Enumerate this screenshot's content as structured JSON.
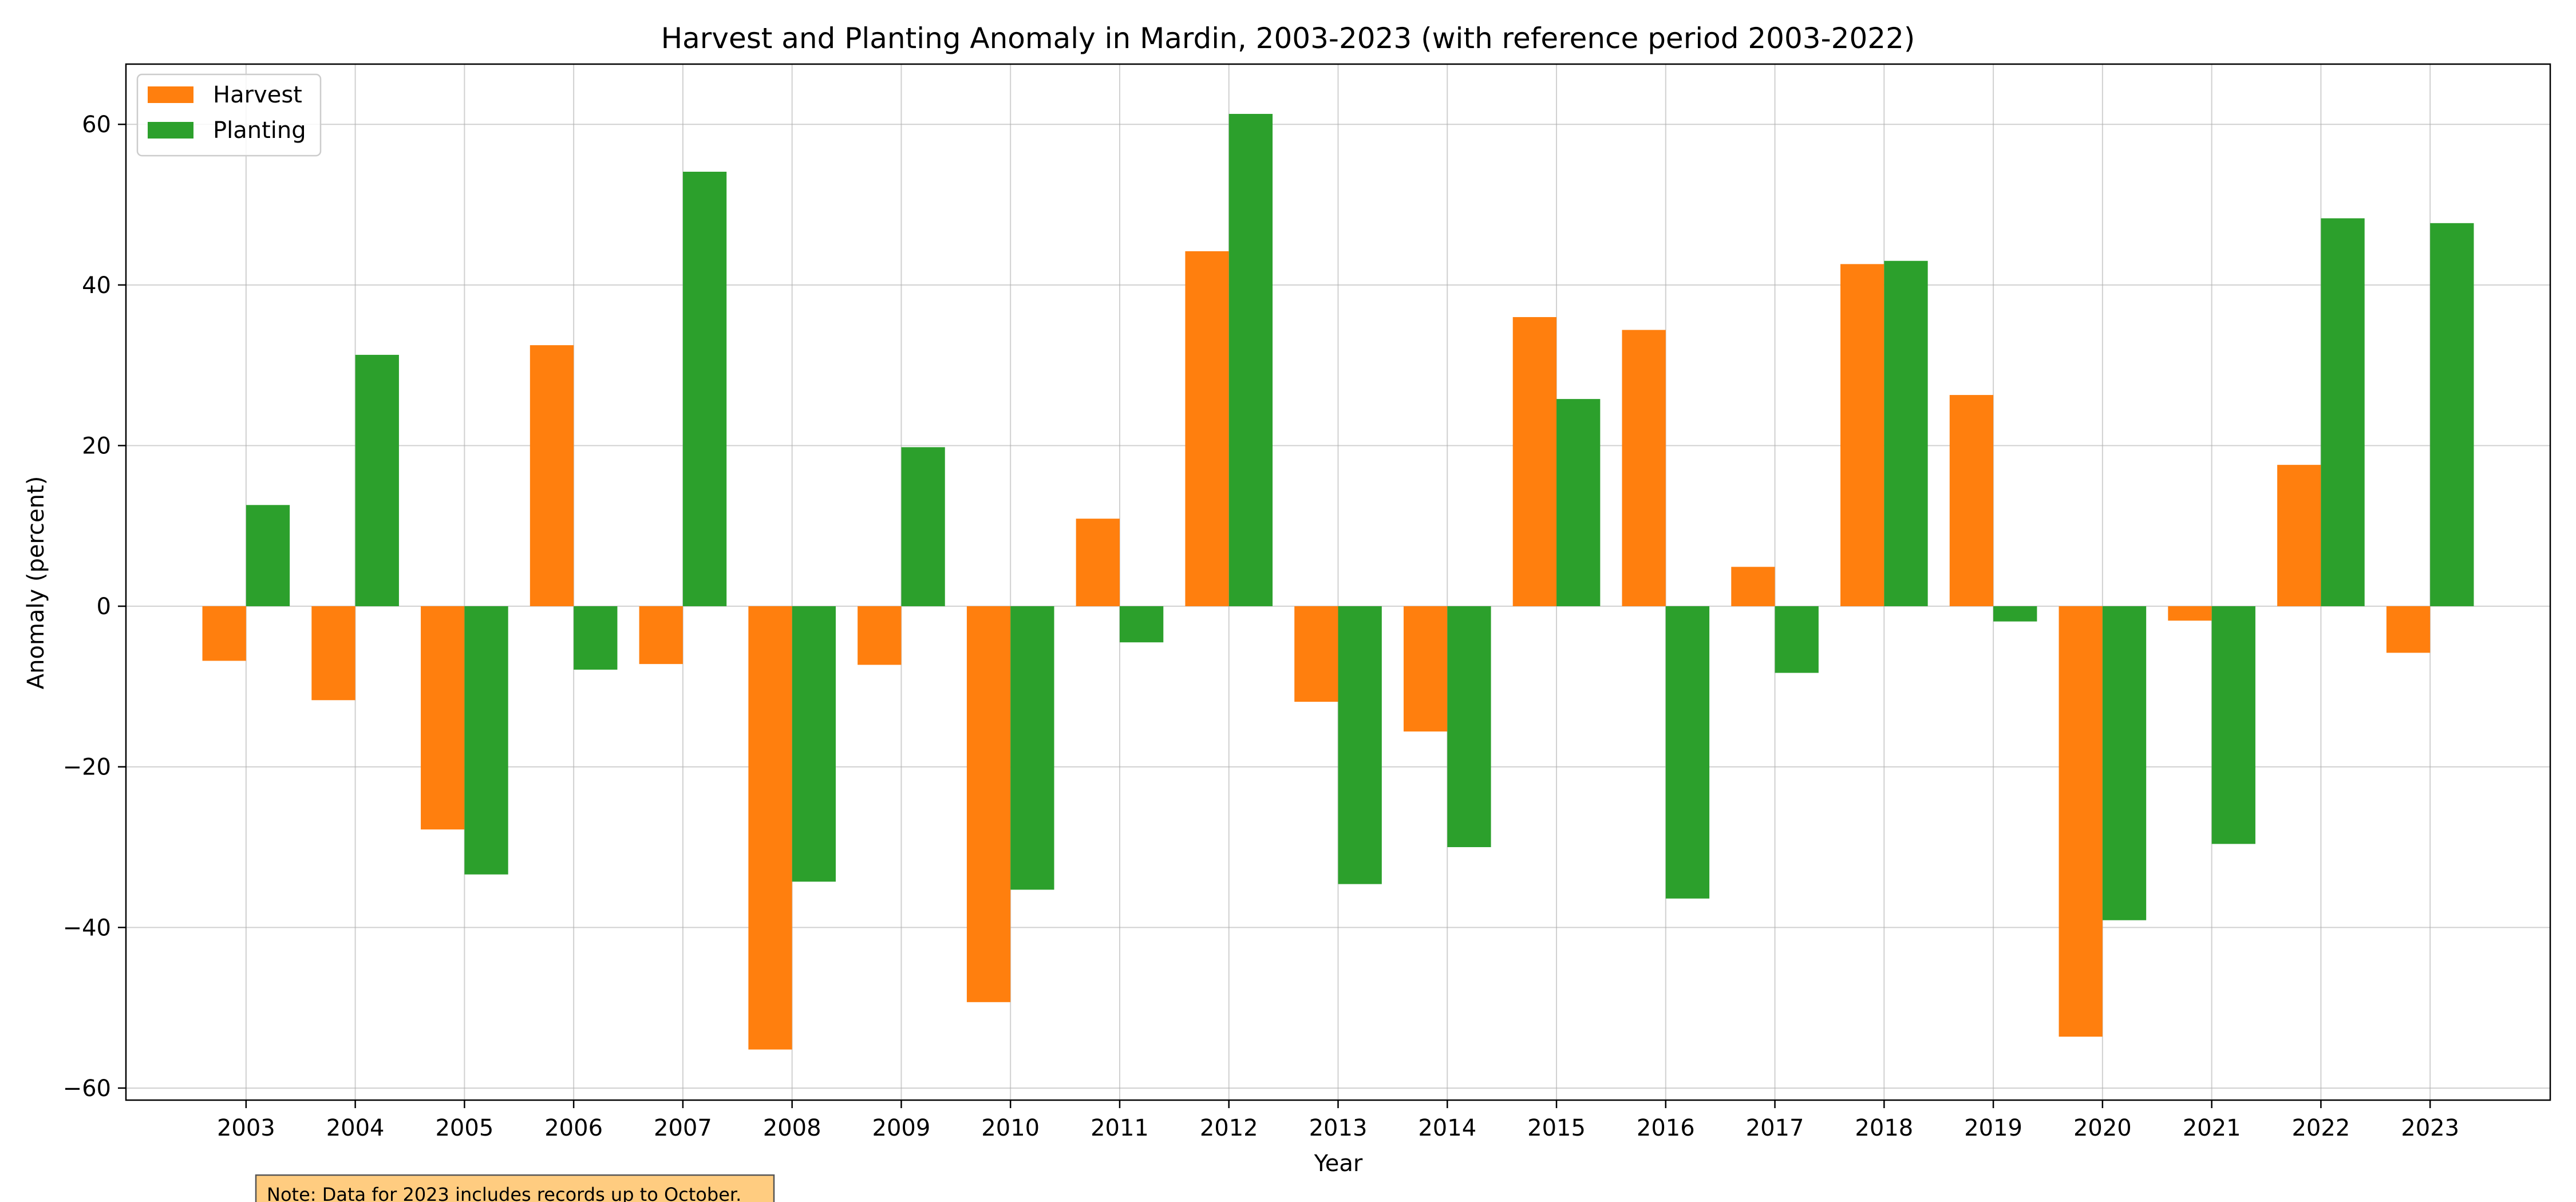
{
  "chart_data": {
    "type": "bar",
    "title": "Harvest and Planting Anomaly in Mardin, 2003-2023 (with reference period 2003-2022)",
    "xlabel": "Year",
    "ylabel": "Anomaly (percent)",
    "categories": [
      "2003",
      "2004",
      "2005",
      "2006",
      "2007",
      "2008",
      "2009",
      "2010",
      "2011",
      "2012",
      "2013",
      "2014",
      "2015",
      "2016",
      "2017",
      "2018",
      "2019",
      "2020",
      "2021",
      "2022",
      "2023"
    ],
    "series": [
      {
        "name": "Harvest",
        "color": "#ff7f0e",
        "values": [
          -6.8,
          -11.7,
          -27.8,
          32.5,
          -7.2,
          -55.2,
          -7.3,
          -49.3,
          10.9,
          44.2,
          -11.9,
          -15.6,
          36.0,
          34.4,
          4.9,
          42.6,
          26.3,
          -53.6,
          -1.8,
          17.6,
          -5.8
        ]
      },
      {
        "name": "Planting",
        "color": "#2ca02c",
        "values": [
          12.6,
          31.3,
          -33.4,
          -7.9,
          54.1,
          -34.3,
          19.8,
          -35.3,
          -4.5,
          61.3,
          -34.6,
          -30.0,
          25.8,
          -36.4,
          -8.3,
          43.0,
          -1.9,
          -39.1,
          -29.6,
          48.3,
          47.7
        ]
      }
    ],
    "ylim": [
      -61.5,
      67.5
    ],
    "yticks": [
      -60,
      -40,
      -20,
      0,
      20,
      40,
      60
    ],
    "grid": true,
    "legend_position": "top-left",
    "note": "Note: Data for 2023 includes records up to October."
  }
}
